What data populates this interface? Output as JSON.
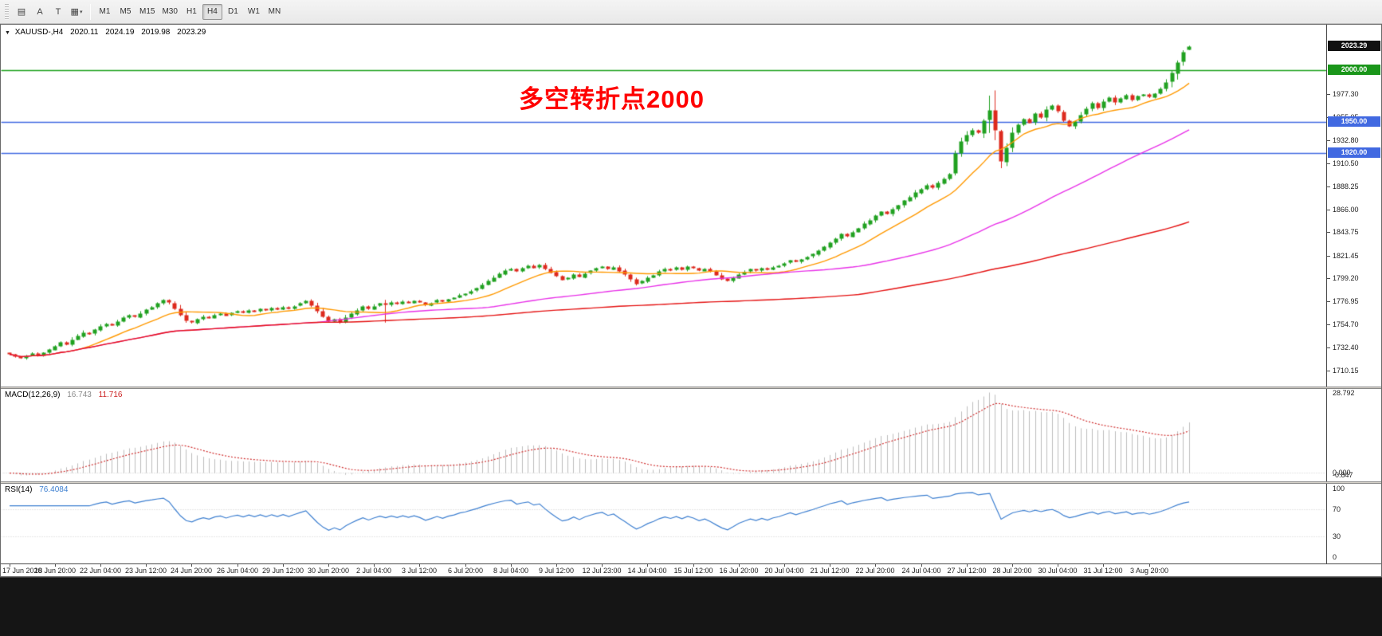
{
  "toolbar": {
    "tools": [
      {
        "name": "charts-grid",
        "glyph": "▤"
      },
      {
        "name": "text-annotation",
        "glyph": "A"
      },
      {
        "name": "text-label",
        "glyph": "T"
      },
      {
        "name": "objects-list",
        "glyph": "▦",
        "caret": "▾"
      }
    ],
    "timeframes": [
      "M1",
      "M5",
      "M15",
      "M30",
      "H1",
      "H4",
      "D1",
      "W1",
      "MN"
    ],
    "active_timeframe": "H4"
  },
  "chart": {
    "symbol_title": "XAUUSD-,H4",
    "ohlc": {
      "open": "2020.11",
      "high": "2024.19",
      "low": "2019.98",
      "close": "2023.29"
    },
    "annotation": "多空转折点2000",
    "annotation_color": "#ff0000",
    "current_price_badge": {
      "label": "2023.29",
      "value": 2023.29,
      "bg": "#111111",
      "fg": "#ffffff"
    },
    "price_ticks": [
      {
        "label": "1977.30",
        "value": 1977.3
      },
      {
        "label": "1955.05",
        "value": 1955.05
      },
      {
        "label": "1932.80",
        "value": 1932.8
      },
      {
        "label": "1910.50",
        "value": 1910.5
      },
      {
        "label": "1888.25",
        "value": 1888.25
      },
      {
        "label": "1866.00",
        "value": 1866.0
      },
      {
        "label": "1843.75",
        "value": 1843.75
      },
      {
        "label": "1821.45",
        "value": 1821.45
      },
      {
        "label": "1799.20",
        "value": 1799.2
      },
      {
        "label": "1776.95",
        "value": 1776.95
      },
      {
        "label": "1754.70",
        "value": 1754.7
      },
      {
        "label": "1732.40",
        "value": 1732.4
      },
      {
        "label": "1710.15",
        "value": 1710.15
      }
    ],
    "hlines": [
      {
        "value": 2000,
        "line_color": "#1aa11a",
        "badge": "2000.00",
        "badge_bg": "#1a961a"
      },
      {
        "value": 1950,
        "line_color": "#4169e1",
        "badge": "1950.00",
        "badge_bg": "#4169e1"
      },
      {
        "value": 1920,
        "line_color": "#4169e1",
        "badge": "1920.00",
        "badge_bg": "#4169e1"
      }
    ]
  },
  "macd_panel": {
    "name": "MACD(12,26,9)",
    "value_main": "16.743",
    "value_signal": "11.716",
    "ticks": [
      {
        "label": "28.792",
        "value": 28.792
      },
      {
        "label": "0.000",
        "value": 0
      },
      {
        "label": "-0.847",
        "value": -0.847
      }
    ]
  },
  "rsi_panel": {
    "name": "RSI(14)",
    "value": "76.4084",
    "ticks": [
      {
        "label": "100",
        "value": 100
      },
      {
        "label": "70",
        "value": 70
      },
      {
        "label": "30",
        "value": 30
      },
      {
        "label": "0",
        "value": 0
      }
    ]
  },
  "time_axis": [
    "17 Jun 2020",
    "18 Jun 20:00",
    "22 Jun 04:00",
    "23 Jun 12:00",
    "24 Jun 20:00",
    "26 Jun 04:00",
    "29 Jun 12:00",
    "30 Jun 20:00",
    "2 Jul 04:00",
    "3 Jul 12:00",
    "6 Jul 20:00",
    "8 Jul 04:00",
    "9 Jul 12:00",
    "12 Jul 23:00",
    "14 Jul 04:00",
    "15 Jul 12:00",
    "16 Jul 20:00",
    "20 Jul 04:00",
    "21 Jul 12:00",
    "22 Jul 20:00",
    "24 Jul 04:00",
    "27 Jul 12:00",
    "28 Jul 20:00",
    "30 Jul 04:00",
    "31 Jul 12:00",
    "3 Aug 20:00"
  ],
  "chart_data": {
    "type": "candlestick",
    "symbol": "XAUUSD",
    "timeframe": "H4",
    "title": "XAUUSD-,H4  O 2020.11  H 2024.19  L 2019.98  C 2023.29",
    "price_range": [
      1695,
      2044
    ],
    "closes": [
      1726.5,
      1724.0,
      1722.5,
      1725.0,
      1727.5,
      1725.5,
      1728.0,
      1731.0,
      1734.5,
      1738.0,
      1736.0,
      1740.5,
      1744.0,
      1747.5,
      1746.0,
      1750.0,
      1753.5,
      1756.0,
      1754.5,
      1758.0,
      1761.5,
      1764.0,
      1762.5,
      1766.0,
      1769.5,
      1772.0,
      1775.5,
      1778.5,
      1776.0,
      1770.5,
      1764.0,
      1758.5,
      1757.0,
      1760.5,
      1763.0,
      1761.5,
      1764.5,
      1766.0,
      1764.0,
      1766.5,
      1768.0,
      1766.5,
      1769.0,
      1767.5,
      1770.0,
      1768.5,
      1771.0,
      1769.5,
      1772.0,
      1770.5,
      1773.0,
      1775.5,
      1778.0,
      1773.5,
      1768.0,
      1762.5,
      1758.0,
      1760.5,
      1757.5,
      1762.0,
      1765.5,
      1769.0,
      1772.5,
      1770.0,
      1773.0,
      1775.5,
      1774.0,
      1776.5,
      1775.0,
      1777.5,
      1776.0,
      1778.0,
      1776.5,
      1774.0,
      1776.0,
      1778.5,
      1777.0,
      1779.5,
      1781.0,
      1783.5,
      1785.0,
      1787.5,
      1790.0,
      1793.5,
      1797.0,
      1800.5,
      1804.0,
      1807.5,
      1809.0,
      1806.5,
      1809.5,
      1812.0,
      1810.0,
      1812.5,
      1809.0,
      1805.5,
      1802.0,
      1798.5,
      1800.0,
      1803.5,
      1801.0,
      1804.5,
      1807.0,
      1809.5,
      1811.0,
      1808.5,
      1810.5,
      1807.0,
      1803.5,
      1799.0,
      1794.5,
      1797.0,
      1800.5,
      1803.0,
      1806.5,
      1809.0,
      1807.5,
      1810.0,
      1808.0,
      1811.0,
      1809.5,
      1807.0,
      1809.0,
      1806.5,
      1803.0,
      1799.5,
      1797.0,
      1800.0,
      1803.5,
      1806.0,
      1808.5,
      1807.0,
      1809.5,
      1808.0,
      1810.5,
      1812.0,
      1814.5,
      1817.0,
      1815.5,
      1818.0,
      1820.5,
      1823.0,
      1826.5,
      1830.0,
      1834.5,
      1838.0,
      1842.5,
      1840.0,
      1844.5,
      1848.0,
      1852.5,
      1856.0,
      1860.5,
      1864.0,
      1862.0,
      1866.5,
      1870.0,
      1874.5,
      1878.0,
      1882.5,
      1886.0,
      1889.5,
      1887.0,
      1891.5,
      1896.0,
      1900.5,
      1920.0,
      1931.5,
      1938.0,
      1942.5,
      1940.0,
      1952.0,
      1961.5,
      1942.0,
      1912.5,
      1926.0,
      1940.5,
      1948.0,
      1953.5,
      1950.0,
      1958.5,
      1955.0,
      1962.5,
      1966.0,
      1960.5,
      1952.0,
      1946.5,
      1951.0,
      1957.5,
      1963.0,
      1968.5,
      1964.0,
      1970.5,
      1974.0,
      1969.5,
      1973.0,
      1976.5,
      1972.0,
      1975.5,
      1977.0,
      1974.5,
      1978.0,
      1982.5,
      1989.0,
      1997.5,
      2008.0,
      2017.5,
      2023.29
    ],
    "wick_overrides": {
      "66": [
        1779,
        1757
      ],
      "166": [
        1923,
        1899
      ],
      "172": [
        1976,
        1940
      ],
      "173": [
        1981,
        1933
      ],
      "174": [
        1943,
        1906
      ],
      "175": [
        1930,
        1908
      ]
    },
    "last_candle": {
      "open": 2020.11,
      "high": 2024.19,
      "low": 2019.98,
      "close": 2023.29
    },
    "candle_colors": {
      "up": "#21a121",
      "down": "#dd2a1e"
    },
    "moving_averages": [
      {
        "period": 13,
        "color": "#ff9900"
      },
      {
        "period": 55,
        "color": "#e832e8"
      },
      {
        "period": 150,
        "color": "#e41212"
      }
    ],
    "macd": {
      "fast": 12,
      "slow": 26,
      "signal_period": 9,
      "display_max": 28.792,
      "display_min": -0.847,
      "hist_color": "#bdbdbd",
      "signal_color": "#d03030",
      "last_main": 16.743,
      "last_signal": 11.716
    },
    "rsi": {
      "period": 14,
      "color": "#3d7fd0",
      "levels": [
        70,
        30
      ],
      "last": 76.4084
    },
    "levels": {
      "resistance": 2000,
      "support": [
        1950,
        1920
      ]
    }
  }
}
